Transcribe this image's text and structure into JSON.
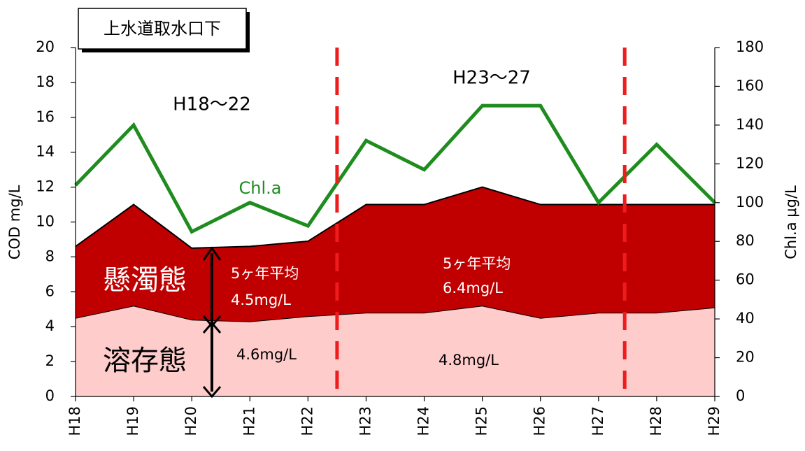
{
  "chart_data": {
    "type": "stacked-area-line",
    "title": "上水道取水口下",
    "y_label": "COD mg/L",
    "y2_label": "Chl.a μg/L",
    "categories": [
      "H18",
      "H19",
      "H20",
      "H21",
      "H22",
      "H23",
      "H24",
      "H25",
      "H26",
      "H27",
      "H28",
      "H29"
    ],
    "series": [
      {
        "name": "溶存態",
        "color": "#ffcccc",
        "values": [
          4.5,
          5.2,
          4.4,
          4.3,
          4.6,
          4.8,
          4.8,
          5.2,
          4.5,
          4.8,
          4.8,
          5.1
        ]
      },
      {
        "name": "懸濁態",
        "color": "#c00000",
        "values": [
          4.1,
          5.8,
          4.1,
          4.3,
          4.3,
          6.2,
          6.2,
          6.8,
          6.5,
          6.2,
          6.2,
          5.9
        ]
      },
      {
        "name": "Chl.a",
        "color": "#1e8c1e",
        "axis": "y2",
        "values": [
          109,
          140,
          85,
          100,
          88,
          132,
          117,
          150,
          150,
          100,
          130,
          100
        ]
      }
    ],
    "ylim": [
      0,
      20
    ],
    "yticks": [
      0,
      2,
      4,
      6,
      8,
      10,
      12,
      14,
      16,
      18,
      20
    ],
    "y2lim": [
      0,
      180
    ],
    "y2ticks": [
      0,
      20,
      40,
      60,
      80,
      100,
      120,
      140,
      160,
      180
    ],
    "annotations": [
      "H18〜22",
      "H23〜27",
      "5ヶ年平均",
      "4.5mg/L",
      "5ヶ年平均",
      "6.4mg/L",
      "4.6mg/L",
      "4.8mg/L"
    ]
  }
}
